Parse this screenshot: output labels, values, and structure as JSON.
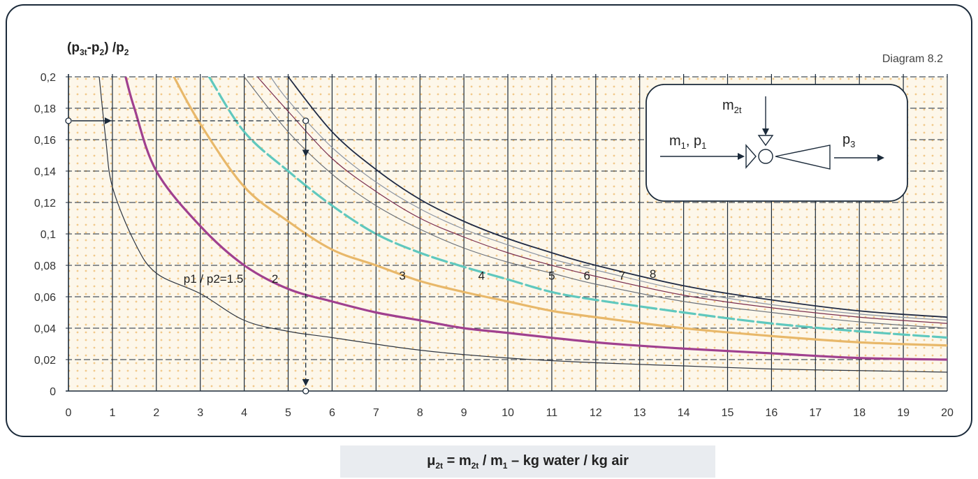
{
  "chart_data": {
    "type": "line",
    "title": "Diagram 8.2",
    "ylabel": {
      "p3t": "3t",
      "p2": "2"
    },
    "xlabel": {
      "mu": "2t",
      "m2t": "2t",
      "m1": "1",
      "units": "kg water / kg air"
    },
    "xlim": [
      0,
      20
    ],
    "ylim": [
      0,
      0.2
    ],
    "x_ticks": [
      "0",
      "1",
      "2",
      "3",
      "4",
      "5",
      "6",
      "7",
      "8",
      "9",
      "10",
      "11",
      "12",
      "13",
      "14",
      "15",
      "16",
      "17",
      "18",
      "19",
      "20"
    ],
    "y_ticks": [
      "0",
      "0,02",
      "0,04",
      "0,06",
      "0,08",
      "0,1",
      "0,12",
      "0,14",
      "0,16",
      "0,18",
      "0,2"
    ],
    "grid": true,
    "series": [
      {
        "name": "p1 / p2=1.5",
        "color": "#2c3440",
        "style": "thin",
        "points": [
          [
            0.7,
            0.2
          ],
          [
            0.85,
            0.16
          ],
          [
            1,
            0.13
          ],
          [
            1.5,
            0.095
          ],
          [
            2,
            0.075
          ],
          [
            3,
            0.062
          ],
          [
            4,
            0.045
          ],
          [
            5,
            0.038
          ],
          [
            6,
            0.034
          ],
          [
            8,
            0.026
          ],
          [
            10,
            0.021
          ],
          [
            12,
            0.018
          ],
          [
            14,
            0.016
          ],
          [
            16,
            0.014
          ],
          [
            18,
            0.013
          ],
          [
            20,
            0.012
          ]
        ]
      },
      {
        "name": "2",
        "color": "#a0408f",
        "style": "thick",
        "points": [
          [
            1.3,
            0.2
          ],
          [
            1.5,
            0.18
          ],
          [
            2,
            0.14
          ],
          [
            3,
            0.105
          ],
          [
            4,
            0.08
          ],
          [
            5,
            0.065
          ],
          [
            6,
            0.057
          ],
          [
            7,
            0.05
          ],
          [
            8,
            0.045
          ],
          [
            9,
            0.04
          ],
          [
            10,
            0.037
          ],
          [
            12,
            0.031
          ],
          [
            14,
            0.027
          ],
          [
            16,
            0.024
          ],
          [
            18,
            0.021
          ],
          [
            20,
            0.02
          ]
        ]
      },
      {
        "name": "3",
        "color": "#e8b86a",
        "style": "thick",
        "points": [
          [
            2.4,
            0.2
          ],
          [
            3,
            0.17
          ],
          [
            4,
            0.13
          ],
          [
            5,
            0.108
          ],
          [
            6,
            0.09
          ],
          [
            7,
            0.08
          ],
          [
            8,
            0.07
          ],
          [
            9,
            0.063
          ],
          [
            10,
            0.057
          ],
          [
            11,
            0.051
          ],
          [
            12,
            0.047
          ],
          [
            14,
            0.04
          ],
          [
            16,
            0.035
          ],
          [
            18,
            0.031
          ],
          [
            20,
            0.029
          ]
        ]
      },
      {
        "name": "4",
        "color": "#5fc8be",
        "style": "dashed",
        "points": [
          [
            3.2,
            0.2
          ],
          [
            4,
            0.165
          ],
          [
            5,
            0.14
          ],
          [
            6,
            0.118
          ],
          [
            7,
            0.1
          ],
          [
            8,
            0.088
          ],
          [
            9,
            0.079
          ],
          [
            10,
            0.071
          ],
          [
            11,
            0.063
          ],
          [
            12,
            0.058
          ],
          [
            14,
            0.05
          ],
          [
            16,
            0.043
          ],
          [
            18,
            0.038
          ],
          [
            20,
            0.034
          ]
        ]
      },
      {
        "name": "5",
        "color": "#6b7179",
        "style": "thin",
        "points": [
          [
            4,
            0.2
          ],
          [
            5,
            0.165
          ],
          [
            6,
            0.138
          ],
          [
            7,
            0.118
          ],
          [
            8,
            0.103
          ],
          [
            9,
            0.091
          ],
          [
            10,
            0.082
          ],
          [
            11,
            0.075
          ],
          [
            12,
            0.068
          ],
          [
            14,
            0.057
          ],
          [
            16,
            0.05
          ],
          [
            18,
            0.044
          ],
          [
            20,
            0.04
          ]
        ]
      },
      {
        "name": "6",
        "color": "#7a2e4e",
        "style": "thin",
        "points": [
          [
            4.3,
            0.2
          ],
          [
            5,
            0.178
          ],
          [
            6,
            0.148
          ],
          [
            7,
            0.127
          ],
          [
            8,
            0.11
          ],
          [
            9,
            0.098
          ],
          [
            10,
            0.088
          ],
          [
            11,
            0.08
          ],
          [
            12,
            0.073
          ],
          [
            14,
            0.061
          ],
          [
            16,
            0.053
          ],
          [
            18,
            0.047
          ],
          [
            20,
            0.043
          ]
        ]
      },
      {
        "name": "7",
        "color": "#8c95a3",
        "style": "thin",
        "points": [
          [
            4.6,
            0.2
          ],
          [
            5,
            0.185
          ],
          [
            6,
            0.155
          ],
          [
            7,
            0.133
          ],
          [
            8,
            0.116
          ],
          [
            9,
            0.103
          ],
          [
            10,
            0.093
          ],
          [
            11,
            0.084
          ],
          [
            12,
            0.077
          ],
          [
            14,
            0.064
          ],
          [
            16,
            0.055
          ],
          [
            18,
            0.049
          ],
          [
            20,
            0.045
          ]
        ]
      },
      {
        "name": "8",
        "color": "#1f2a44",
        "style": "medium",
        "points": [
          [
            5,
            0.2
          ],
          [
            6,
            0.165
          ],
          [
            7,
            0.141
          ],
          [
            8,
            0.122
          ],
          [
            9,
            0.108
          ],
          [
            10,
            0.097
          ],
          [
            11,
            0.088
          ],
          [
            12,
            0.08
          ],
          [
            14,
            0.067
          ],
          [
            16,
            0.058
          ],
          [
            18,
            0.051
          ],
          [
            20,
            0.047
          ]
        ]
      }
    ],
    "annotations": [
      {
        "text": "p1 / p2=1.5",
        "x": 3.3,
        "y": 0.069
      },
      {
        "text": "2",
        "x": 4.7,
        "y": 0.069
      },
      {
        "text": "3",
        "x": 7.6,
        "y": 0.071
      },
      {
        "text": "4",
        "x": 9.4,
        "y": 0.071
      },
      {
        "text": "5",
        "x": 11.0,
        "y": 0.071
      },
      {
        "text": "6",
        "x": 11.8,
        "y": 0.071
      },
      {
        "text": "7",
        "x": 12.6,
        "y": 0.071
      },
      {
        "text": "8",
        "x": 13.3,
        "y": 0.072
      }
    ],
    "example": {
      "start_y": 0.172,
      "x": 5.4
    },
    "schematic": {
      "m2t": "2t",
      "m1": "1",
      "p1": "1",
      "p3": "3"
    }
  }
}
